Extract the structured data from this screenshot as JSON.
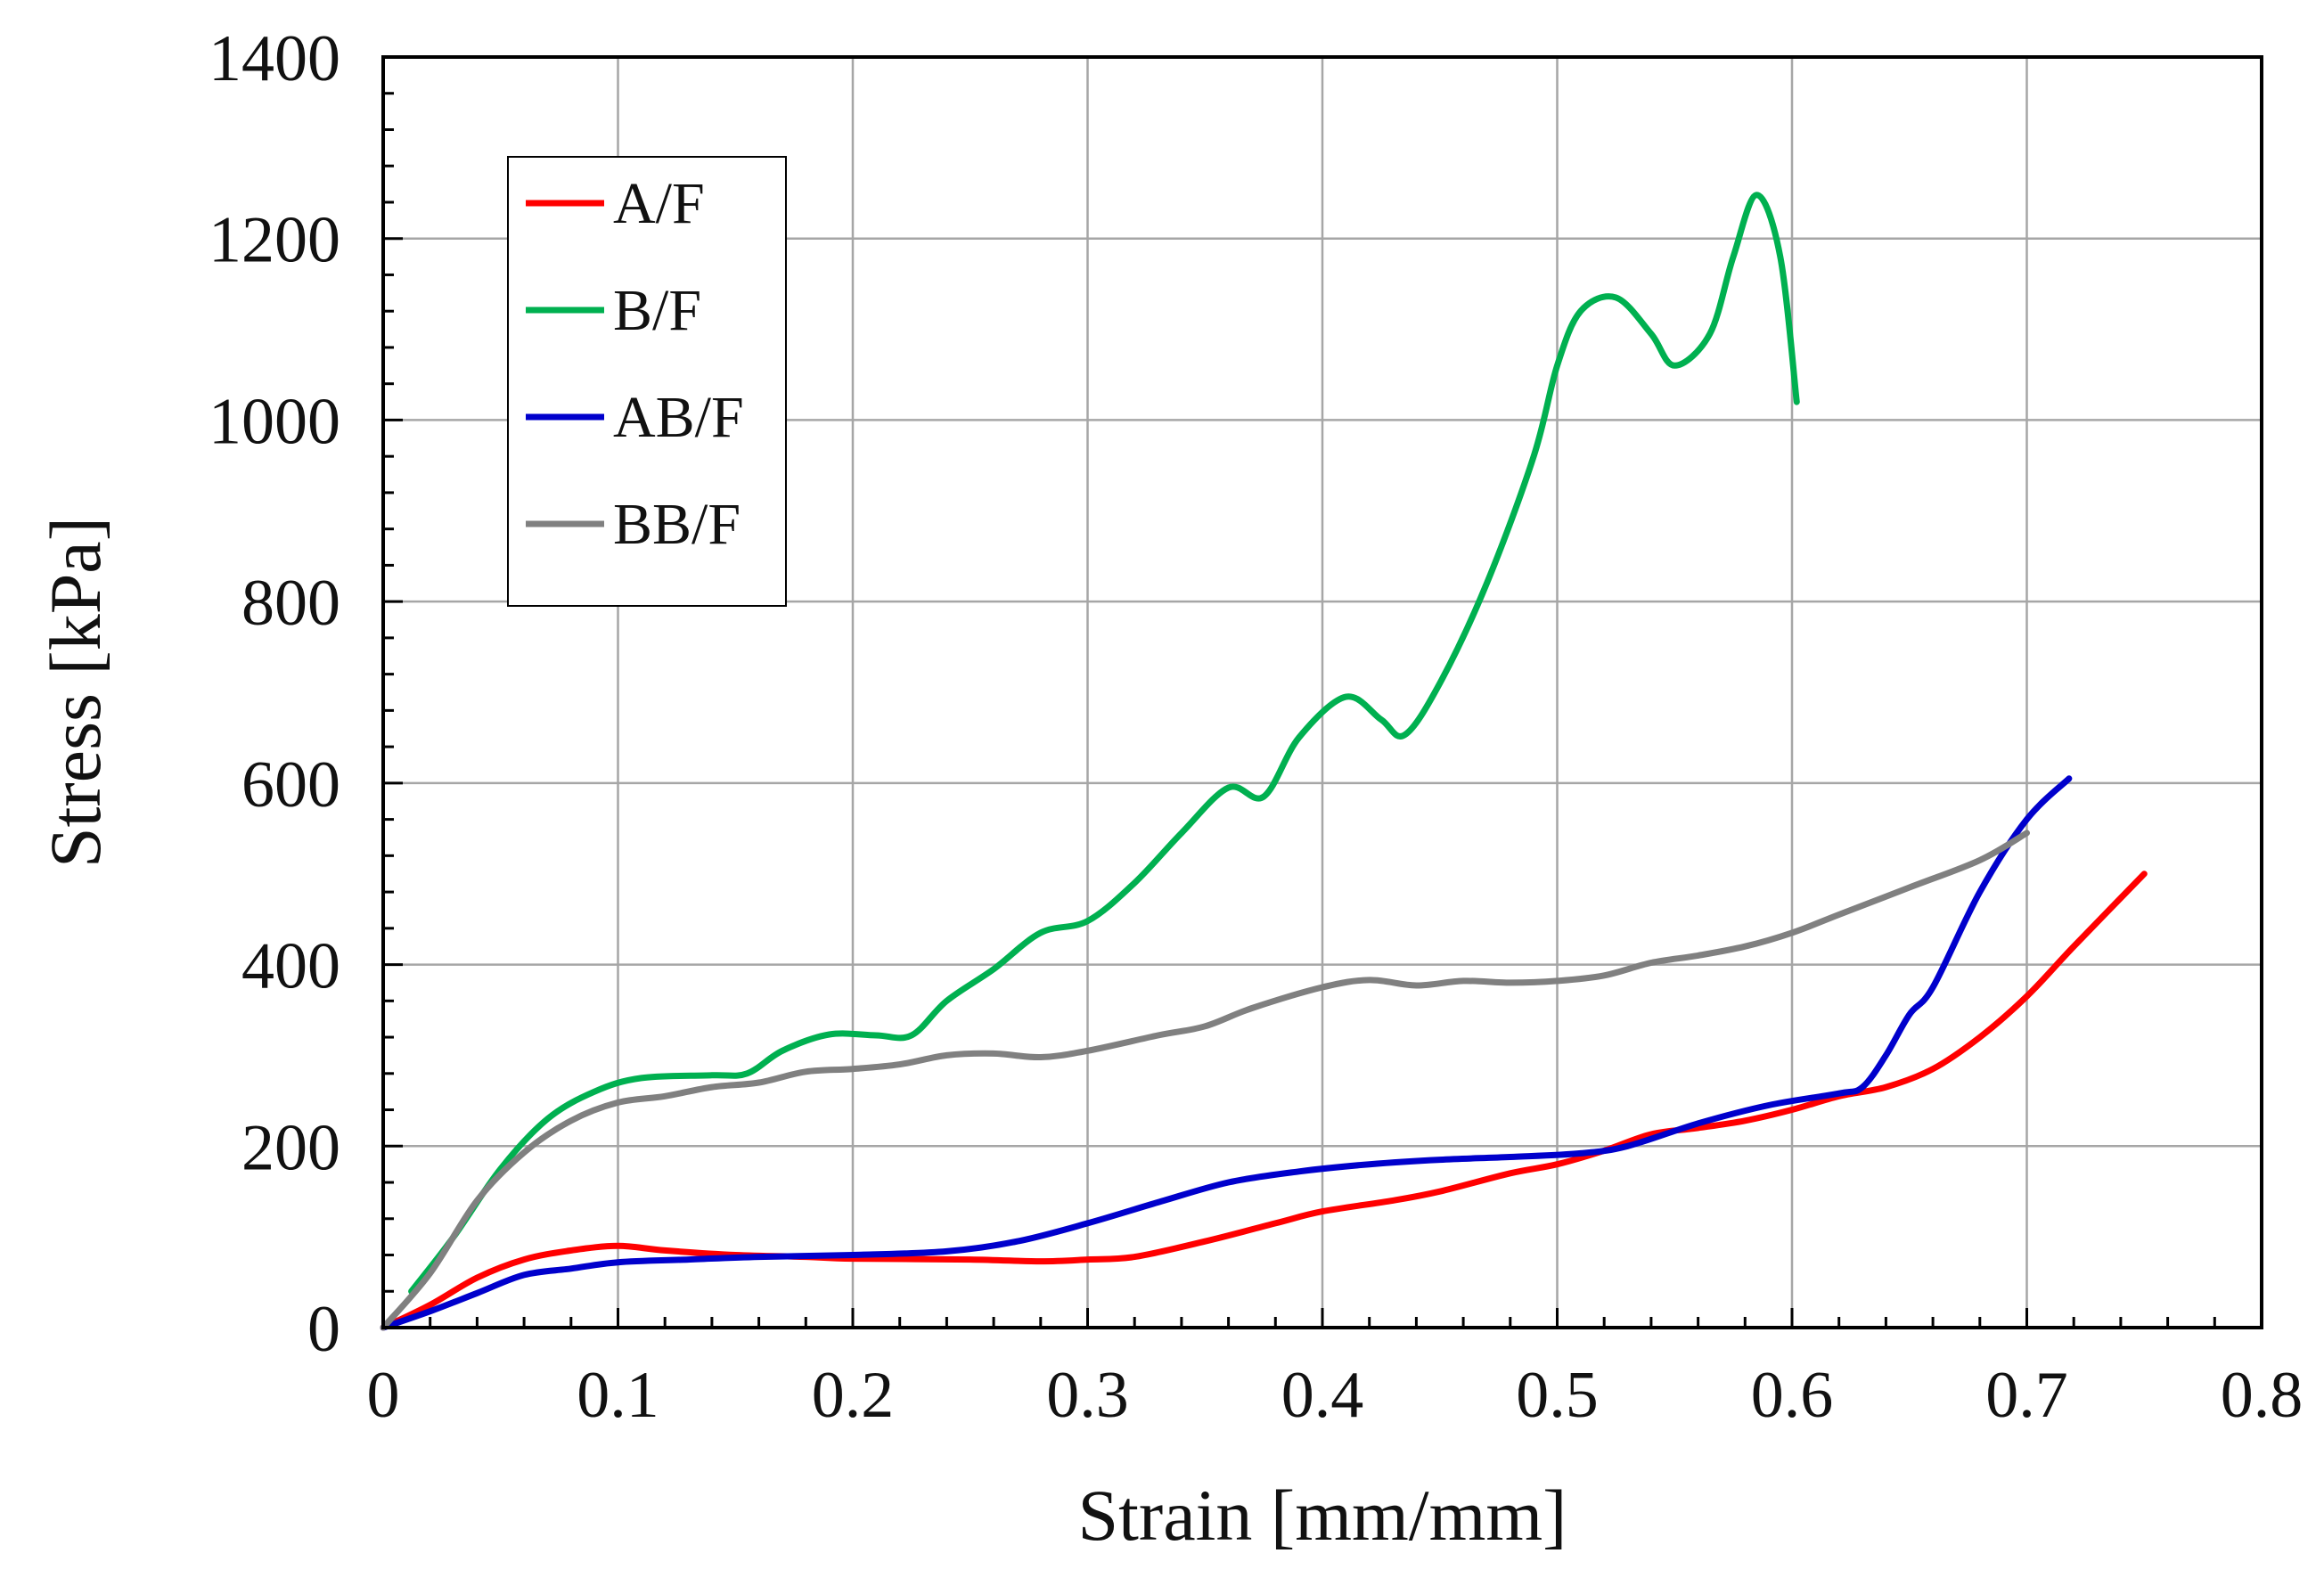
{
  "chart_data": {
    "type": "line",
    "title": "",
    "xlabel": "Strain [mm/mm]",
    "ylabel": "Stress [kPa]",
    "xlim": [
      0,
      0.8
    ],
    "ylim": [
      0,
      1400
    ],
    "xticks": [
      0,
      0.1,
      0.2,
      0.3,
      0.4,
      0.5,
      0.6,
      0.7,
      0.8
    ],
    "xtick_labels": [
      "0",
      "0.1",
      "0.2",
      "0.3",
      "0.4",
      "0.5",
      "0.6",
      "0.7",
      "0.8"
    ],
    "yticks": [
      0,
      200,
      400,
      600,
      800,
      1000,
      1200,
      1400
    ],
    "ytick_labels": [
      "0",
      "200",
      "400",
      "600",
      "800",
      "1000",
      "1200",
      "1400"
    ],
    "grid": true,
    "legend_position": "top-left",
    "series": [
      {
        "name": "A/F",
        "color": "#ff0000",
        "points": [
          [
            0,
            0
          ],
          [
            0.02,
            25
          ],
          [
            0.04,
            55
          ],
          [
            0.06,
            75
          ],
          [
            0.08,
            85
          ],
          [
            0.1,
            90
          ],
          [
            0.12,
            85
          ],
          [
            0.15,
            80
          ],
          [
            0.18,
            78
          ],
          [
            0.2,
            76
          ],
          [
            0.25,
            75
          ],
          [
            0.28,
            73
          ],
          [
            0.3,
            75
          ],
          [
            0.32,
            78
          ],
          [
            0.35,
            95
          ],
          [
            0.38,
            115
          ],
          [
            0.4,
            128
          ],
          [
            0.43,
            140
          ],
          [
            0.45,
            150
          ],
          [
            0.48,
            170
          ],
          [
            0.5,
            180
          ],
          [
            0.52,
            195
          ],
          [
            0.54,
            213
          ],
          [
            0.56,
            220
          ],
          [
            0.58,
            228
          ],
          [
            0.6,
            240
          ],
          [
            0.62,
            255
          ],
          [
            0.64,
            265
          ],
          [
            0.66,
            285
          ],
          [
            0.68,
            320
          ],
          [
            0.7,
            365
          ],
          [
            0.72,
            420
          ],
          [
            0.75,
            500
          ]
        ]
      },
      {
        "name": "B/F",
        "color": "#00b050",
        "points": [
          [
            0.012,
            40
          ],
          [
            0.03,
            100
          ],
          [
            0.05,
            175
          ],
          [
            0.07,
            230
          ],
          [
            0.09,
            260
          ],
          [
            0.11,
            275
          ],
          [
            0.14,
            278
          ],
          [
            0.155,
            280
          ],
          [
            0.17,
            305
          ],
          [
            0.19,
            323
          ],
          [
            0.21,
            322
          ],
          [
            0.225,
            322
          ],
          [
            0.24,
            360
          ],
          [
            0.26,
            395
          ],
          [
            0.28,
            435
          ],
          [
            0.3,
            448
          ],
          [
            0.32,
            490
          ],
          [
            0.34,
            545
          ],
          [
            0.36,
            595
          ],
          [
            0.375,
            585
          ],
          [
            0.39,
            650
          ],
          [
            0.41,
            695
          ],
          [
            0.425,
            670
          ],
          [
            0.435,
            653
          ],
          [
            0.45,
            710
          ],
          [
            0.47,
            820
          ],
          [
            0.49,
            960
          ],
          [
            0.5,
            1060
          ],
          [
            0.51,
            1120
          ],
          [
            0.525,
            1135
          ],
          [
            0.54,
            1095
          ],
          [
            0.55,
            1060
          ],
          [
            0.565,
            1095
          ],
          [
            0.575,
            1180
          ],
          [
            0.585,
            1248
          ],
          [
            0.595,
            1180
          ],
          [
            0.602,
            1020
          ]
        ]
      },
      {
        "name": "AB/F",
        "color": "#0000cc",
        "points": [
          [
            0,
            0
          ],
          [
            0.02,
            18
          ],
          [
            0.04,
            38
          ],
          [
            0.06,
            58
          ],
          [
            0.08,
            65
          ],
          [
            0.1,
            72
          ],
          [
            0.13,
            75
          ],
          [
            0.16,
            78
          ],
          [
            0.2,
            80
          ],
          [
            0.24,
            84
          ],
          [
            0.27,
            95
          ],
          [
            0.3,
            115
          ],
          [
            0.33,
            138
          ],
          [
            0.36,
            160
          ],
          [
            0.39,
            172
          ],
          [
            0.42,
            180
          ],
          [
            0.45,
            185
          ],
          [
            0.48,
            188
          ],
          [
            0.51,
            192
          ],
          [
            0.53,
            200
          ],
          [
            0.56,
            225
          ],
          [
            0.59,
            245
          ],
          [
            0.62,
            258
          ],
          [
            0.63,
            265
          ],
          [
            0.64,
            300
          ],
          [
            0.65,
            345
          ],
          [
            0.66,
            375
          ],
          [
            0.68,
            480
          ],
          [
            0.7,
            560
          ],
          [
            0.718,
            605
          ]
        ]
      },
      {
        "name": "BB/F",
        "color": "#808080",
        "points": [
          [
            0,
            0
          ],
          [
            0.02,
            60
          ],
          [
            0.04,
            140
          ],
          [
            0.06,
            193
          ],
          [
            0.08,
            228
          ],
          [
            0.1,
            248
          ],
          [
            0.12,
            255
          ],
          [
            0.14,
            265
          ],
          [
            0.16,
            270
          ],
          [
            0.18,
            282
          ],
          [
            0.2,
            285
          ],
          [
            0.22,
            290
          ],
          [
            0.24,
            300
          ],
          [
            0.26,
            302
          ],
          [
            0.28,
            298
          ],
          [
            0.3,
            305
          ],
          [
            0.33,
            322
          ],
          [
            0.35,
            332
          ],
          [
            0.37,
            352
          ],
          [
            0.4,
            375
          ],
          [
            0.42,
            383
          ],
          [
            0.44,
            377
          ],
          [
            0.46,
            382
          ],
          [
            0.48,
            380
          ],
          [
            0.5,
            382
          ],
          [
            0.52,
            388
          ],
          [
            0.54,
            402
          ],
          [
            0.56,
            410
          ],
          [
            0.58,
            420
          ],
          [
            0.6,
            435
          ],
          [
            0.62,
            455
          ],
          [
            0.65,
            485
          ],
          [
            0.68,
            515
          ],
          [
            0.7,
            545
          ]
        ]
      }
    ]
  }
}
